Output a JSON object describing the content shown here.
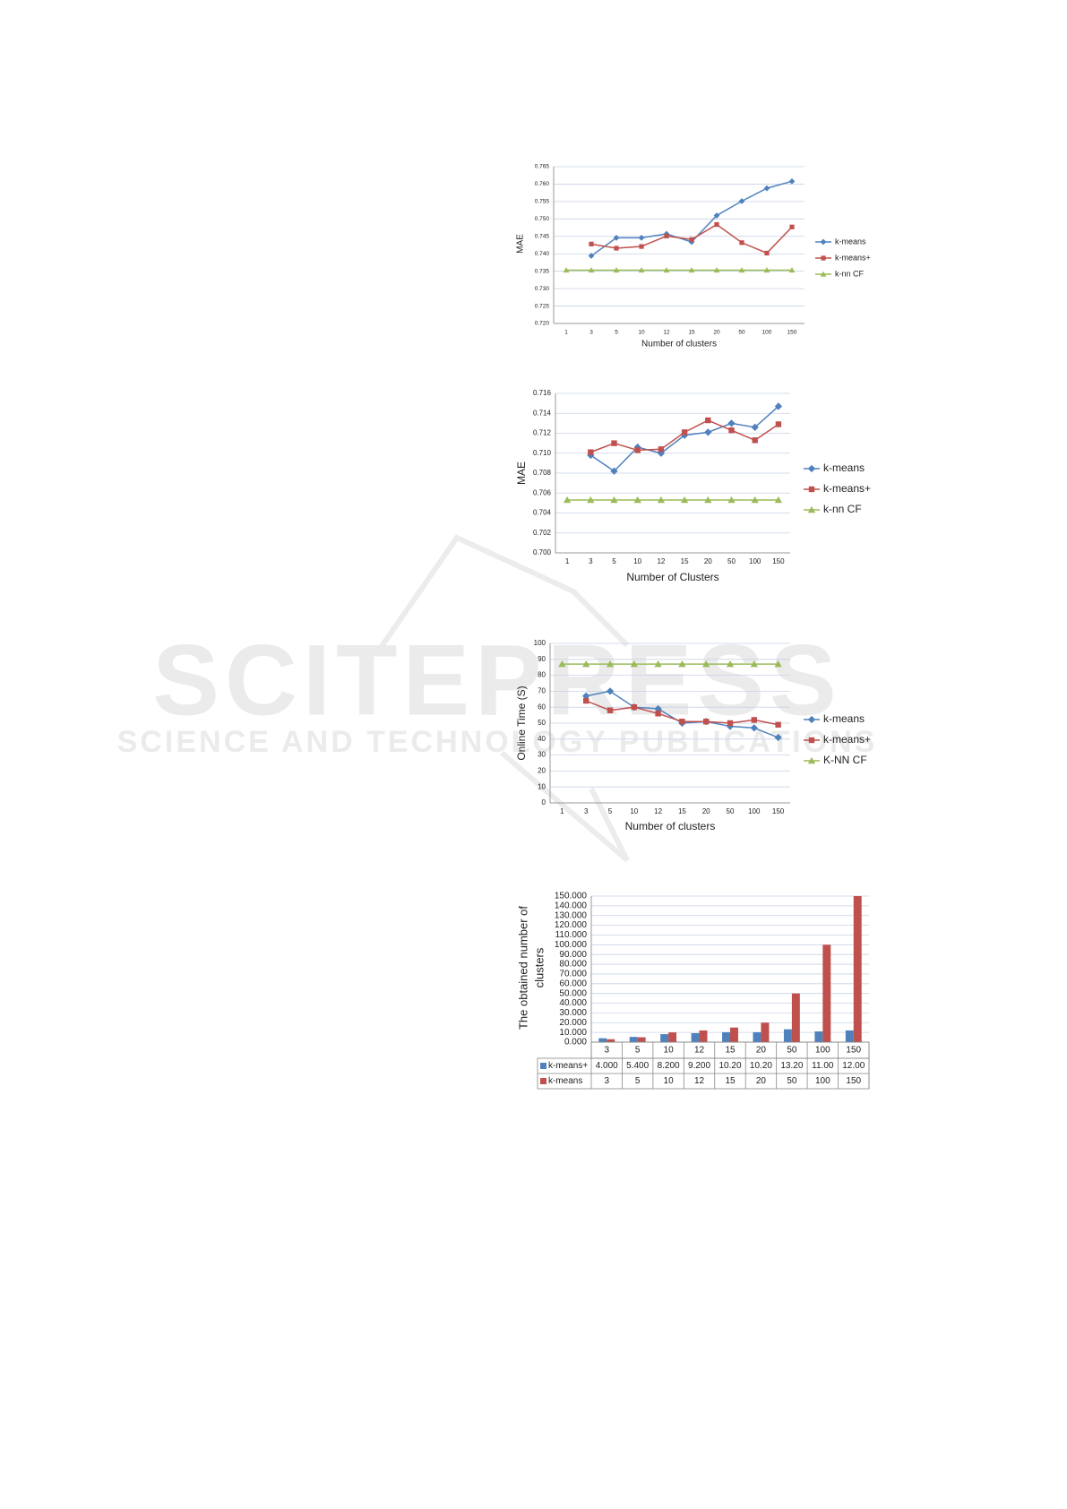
{
  "watermark": {
    "title": "SCITEPRESS",
    "subtitle": "SCIENCE AND TECHNOLOGY PUBLICATIONS"
  },
  "chart_data": [
    {
      "type": "line",
      "xlabel": "Number of clusters",
      "ylabel": "MAE",
      "grid": true,
      "legend": "right",
      "categories": [
        "1",
        "3",
        "5",
        "10",
        "12",
        "15",
        "20",
        "50",
        "100",
        "150"
      ],
      "ylim": [
        0.72,
        0.765
      ],
      "yticks": [
        {
          "value": 0.72,
          "label": "0.720"
        },
        {
          "value": 0.725,
          "label": "0.725"
        },
        {
          "value": 0.73,
          "label": "0.730"
        },
        {
          "value": 0.735,
          "label": "0.735"
        },
        {
          "value": 0.74,
          "label": "0.740"
        },
        {
          "value": 0.745,
          "label": "0.745"
        },
        {
          "value": 0.75,
          "label": "0.750"
        },
        {
          "value": 0.755,
          "label": "0.755"
        },
        {
          "value": 0.76,
          "label": "0.760"
        },
        {
          "value": 0.765,
          "label": "0.765"
        }
      ],
      "series": [
        {
          "name": "k-means",
          "color": "#4f81bd",
          "marker": "diamond",
          "values": [
            null,
            0.7394,
            0.7446,
            0.7446,
            0.7457,
            0.7434,
            0.751,
            0.7551,
            0.7588,
            0.7608
          ]
        },
        {
          "name": "k-means+",
          "color": "#c0504d",
          "marker": "square",
          "values": [
            null,
            0.7428,
            0.7416,
            0.7421,
            0.7451,
            0.7441,
            0.7484,
            0.7432,
            0.7402,
            0.7477
          ]
        },
        {
          "name": "k-nn CF",
          "color": "#9bbb59",
          "marker": "triangle",
          "values": [
            0.7353,
            0.7353,
            0.7353,
            0.7353,
            0.7353,
            0.7353,
            0.7353,
            0.7353,
            0.7353,
            0.7353
          ]
        }
      ]
    },
    {
      "type": "line",
      "xlabel": "Number of Clusters",
      "ylabel": "MAE",
      "grid": true,
      "legend": "right",
      "categories": [
        "1",
        "3",
        "5",
        "10",
        "12",
        "15",
        "20",
        "50",
        "100",
        "150"
      ],
      "ylim": [
        0.7,
        0.716
      ],
      "yticks": [
        {
          "value": 0.7,
          "label": "0.700"
        },
        {
          "value": 0.702,
          "label": "0.702"
        },
        {
          "value": 0.704,
          "label": "0.704"
        },
        {
          "value": 0.706,
          "label": "0.706"
        },
        {
          "value": 0.708,
          "label": "0.708"
        },
        {
          "value": 0.71,
          "label": "0.710"
        },
        {
          "value": 0.712,
          "label": "0.712"
        },
        {
          "value": 0.714,
          "label": "0.714"
        },
        {
          "value": 0.716,
          "label": "0.716"
        }
      ],
      "series": [
        {
          "name": "k-means",
          "color": "#4f81bd",
          "marker": "diamond",
          "values": [
            null,
            0.7098,
            0.7082,
            0.7106,
            0.71,
            0.7118,
            0.7121,
            0.713,
            0.7126,
            0.7147
          ]
        },
        {
          "name": "k-means+",
          "color": "#c0504d",
          "marker": "square",
          "values": [
            null,
            0.7101,
            0.711,
            0.7103,
            0.7104,
            0.7121,
            0.7133,
            0.7123,
            0.7113,
            0.7129
          ]
        },
        {
          "name": "k-nn CF",
          "color": "#9bbb59",
          "marker": "triangle",
          "values": [
            0.7053,
            0.7053,
            0.7053,
            0.7053,
            0.7053,
            0.7053,
            0.7053,
            0.7053,
            0.7053,
            0.7053
          ]
        }
      ]
    },
    {
      "type": "line",
      "xlabel": "Number of clusters",
      "ylabel": "Online Time  (S)",
      "grid": true,
      "legend": "right",
      "categories": [
        "1",
        "3",
        "5",
        "10",
        "12",
        "15",
        "20",
        "50",
        "100",
        "150"
      ],
      "ylim": [
        0,
        100
      ],
      "yticks": [
        0,
        10,
        20,
        30,
        40,
        50,
        60,
        70,
        80,
        90,
        100
      ],
      "series": [
        {
          "name": "k-means",
          "color": "#4f81bd",
          "marker": "diamond",
          "values": [
            null,
            67,
            70,
            60,
            59,
            50,
            51,
            48,
            47,
            41
          ]
        },
        {
          "name": "k-means+",
          "color": "#c0504d",
          "marker": "square",
          "values": [
            null,
            64,
            58,
            60,
            56,
            51,
            51,
            50,
            52,
            49
          ]
        },
        {
          "name": "K-NN CF",
          "color": "#9bbb59",
          "marker": "triangle",
          "values": [
            87,
            87,
            87,
            87,
            87,
            87,
            87,
            87,
            87,
            87
          ]
        }
      ]
    },
    {
      "type": "bar",
      "ylabel": [
        "The obtained number of",
        "clusters"
      ],
      "grid": true,
      "legend": "table",
      "categories": [
        "3",
        "5",
        "10",
        "12",
        "15",
        "20",
        "50",
        "100",
        "150"
      ],
      "ylim": [
        0,
        150
      ],
      "yticks": [
        {
          "value": 0,
          "label": "0.000"
        },
        {
          "value": 10,
          "label": "10.000"
        },
        {
          "value": 20,
          "label": "20.000"
        },
        {
          "value": 30,
          "label": "30.000"
        },
        {
          "value": 40,
          "label": "40.000"
        },
        {
          "value": 50,
          "label": "50.000"
        },
        {
          "value": 60,
          "label": "60.000"
        },
        {
          "value": 70,
          "label": "70.000"
        },
        {
          "value": 80,
          "label": "80.000"
        },
        {
          "value": 90,
          "label": "90.000"
        },
        {
          "value": 100,
          "label": "100.000"
        },
        {
          "value": 110,
          "label": "110.000"
        },
        {
          "value": 120,
          "label": "120.000"
        },
        {
          "value": 130,
          "label": "130.000"
        },
        {
          "value": 140,
          "label": "140.000"
        },
        {
          "value": 150,
          "label": "150.000"
        }
      ],
      "series": [
        {
          "name": "k-means+",
          "color": "#4f81bd",
          "values": [
            4,
            5.4,
            8.2,
            9.2,
            10.2,
            10.2,
            13.2,
            11,
            12
          ],
          "value_labels": [
            "4.000",
            "5.400",
            "8.200",
            "9.200",
            "10.20",
            "10.20",
            "13.20",
            "11.00",
            "12.00"
          ]
        },
        {
          "name": "k-means",
          "color": "#c0504d",
          "values": [
            3,
            5,
            10,
            12,
            15,
            20,
            50,
            100,
            150
          ]
        }
      ]
    }
  ]
}
